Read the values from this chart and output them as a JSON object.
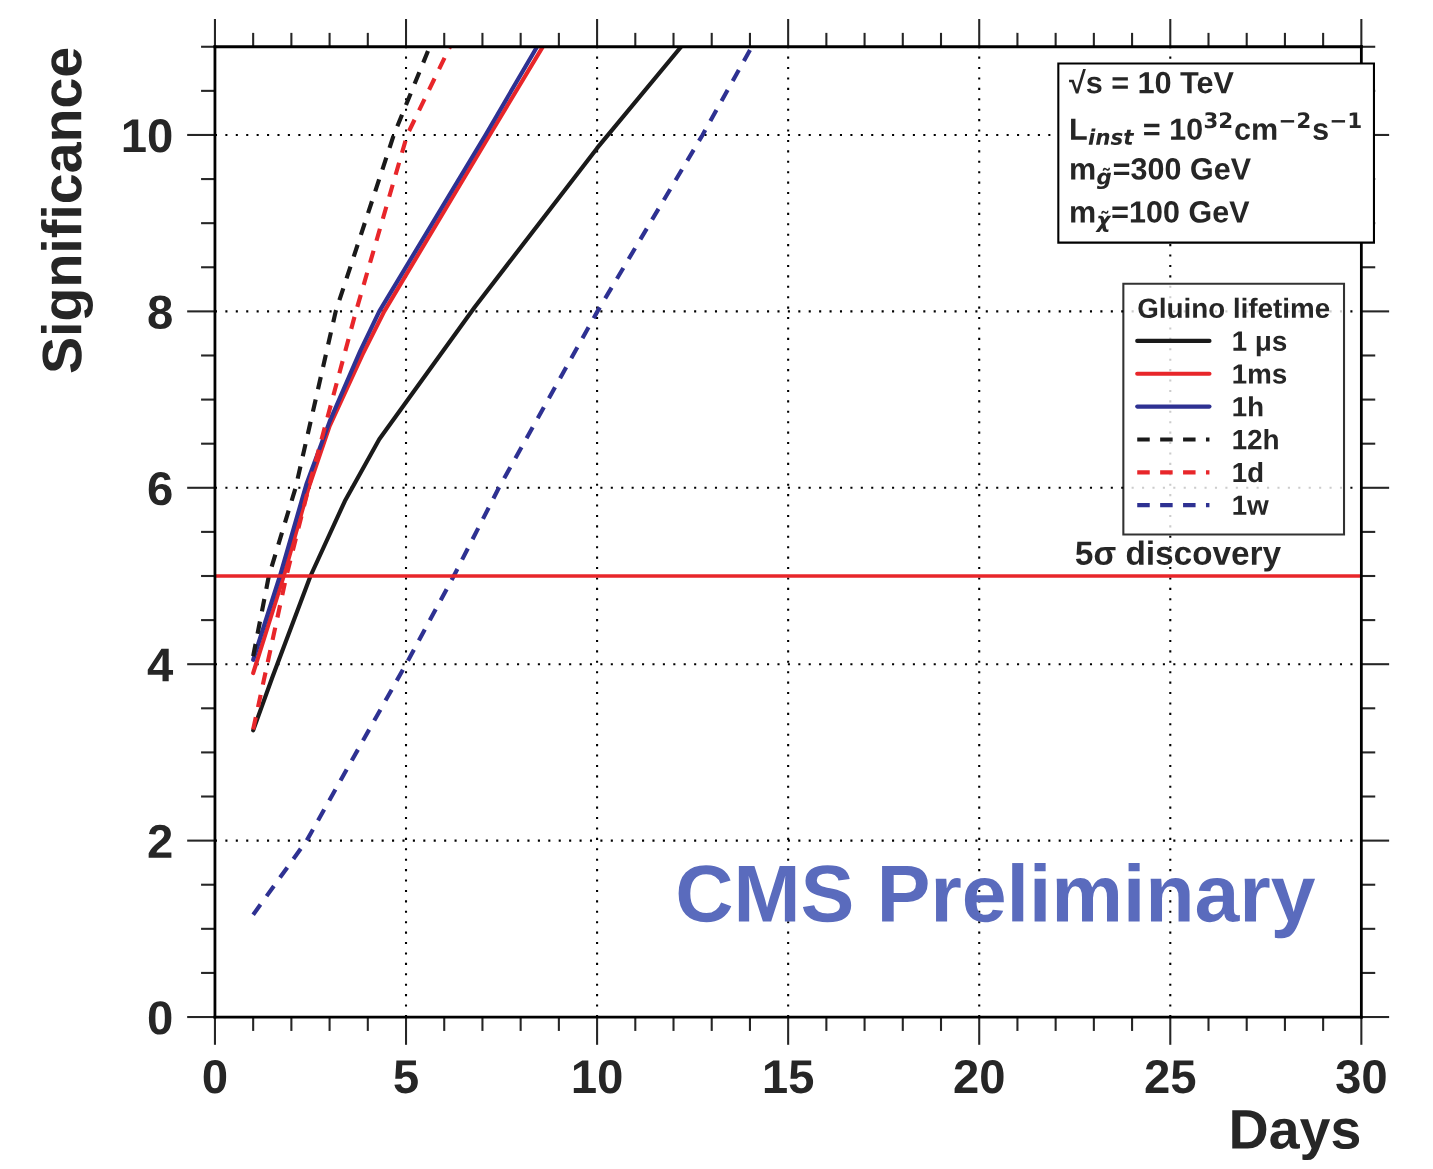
{
  "chart_data": {
    "type": "line",
    "xlabel": "Days",
    "ylabel": "Significance",
    "legend_title": "Gluino lifetime",
    "xlim": [
      0,
      30
    ],
    "ylim": [
      0,
      11
    ],
    "xticks": [
      0,
      {
        "value": 1,
        "label": null
      },
      {
        "value": 2,
        "label": null
      },
      {
        "value": 3,
        "label": null
      },
      {
        "value": 4,
        "label": null
      },
      5,
      {
        "value": 6,
        "label": null
      },
      {
        "value": 7,
        "label": null
      },
      {
        "value": 8,
        "label": null
      },
      {
        "value": 9,
        "label": null
      },
      10,
      {
        "value": 11,
        "label": null
      },
      {
        "value": 12,
        "label": null
      },
      {
        "value": 13,
        "label": null
      },
      {
        "value": 14,
        "label": null
      },
      15,
      {
        "value": 16,
        "label": null
      },
      {
        "value": 17,
        "label": null
      },
      {
        "value": 18,
        "label": null
      },
      {
        "value": 19,
        "label": null
      },
      20,
      {
        "value": 21,
        "label": null
      },
      {
        "value": 22,
        "label": null
      },
      {
        "value": 23,
        "label": null
      },
      {
        "value": 24,
        "label": null
      },
      25,
      {
        "value": 26,
        "label": null
      },
      {
        "value": 27,
        "label": null
      },
      {
        "value": 28,
        "label": null
      },
      {
        "value": 29,
        "label": null
      },
      30
    ],
    "yticks": [
      0,
      {
        "value": 0.5,
        "label": null
      },
      {
        "value": 1,
        "label": null
      },
      {
        "value": 1.5,
        "label": null
      },
      2,
      {
        "value": 2.5,
        "label": null
      },
      {
        "value": 3,
        "label": null
      },
      {
        "value": 3.5,
        "label": null
      },
      4,
      {
        "value": 4.5,
        "label": null
      },
      {
        "value": 5,
        "label": null
      },
      {
        "value": 5.5,
        "label": null
      },
      6,
      {
        "value": 6.5,
        "label": null
      },
      {
        "value": 7,
        "label": null
      },
      {
        "value": 7.5,
        "label": null
      },
      8,
      {
        "value": 8.5,
        "label": null
      },
      {
        "value": 9,
        "label": null
      },
      {
        "value": 9.5,
        "label": null
      },
      10,
      {
        "value": 10.5,
        "label": null
      },
      {
        "value": 11,
        "label": null
      }
    ],
    "grid": true,
    "legend": "top right",
    "series": [
      {
        "name": "1 μs",
        "color": "#1a1a1a",
        "line_style": "solid",
        "x": [
          1,
          1.5,
          2.5,
          3.4,
          4.3,
          6.8,
          10,
          12.2
        ],
        "values": [
          3.25,
          3.85,
          5.0,
          5.85,
          6.55,
          8.05,
          9.85,
          11.0
        ]
      },
      {
        "name": "1ms",
        "color": "#e8262a",
        "line_style": "solid",
        "x": [
          1,
          1.8,
          2.45,
          3.0,
          3.86,
          4.43,
          7.19,
          8.58
        ],
        "values": [
          3.9,
          5,
          6,
          6.7,
          7.51,
          8,
          10,
          11
        ]
      },
      {
        "name": "1h",
        "color": "#2e3192",
        "line_style": "solid",
        "x": [
          1,
          1.7,
          2.4,
          3.0,
          3.8,
          4.3,
          7.08,
          8.43
        ],
        "values": [
          4.05,
          5,
          6.05,
          6.75,
          7.55,
          8,
          10,
          11
        ]
      },
      {
        "name": "12h",
        "color": "#1a1a1a",
        "line_style": "dashed",
        "x": [
          1,
          1.41,
          2.11,
          3.16,
          4.68,
          5.62
        ],
        "values": [
          4.09,
          5,
          6,
          8,
          10,
          11
        ]
      },
      {
        "name": "1d",
        "color": "#e8262a",
        "line_style": "dashed",
        "x": [
          1,
          1.87,
          2.45,
          3.69,
          5.03,
          6.15
        ],
        "values": [
          3.26,
          5,
          6,
          8,
          10,
          11
        ]
      },
      {
        "name": "1w",
        "color": "#2e3192",
        "line_style": "dashed",
        "x": [
          1,
          2.4,
          5,
          6.25,
          7.43,
          10.01,
          12.76,
          14.05
        ],
        "values": [
          1.16,
          2,
          4,
          5,
          6,
          8,
          10,
          11
        ]
      }
    ],
    "ref_lines": [
      {
        "axis": "y",
        "value": 5,
        "label": "5σ discovery",
        "color": "#e8262a",
        "line_style": "solid"
      }
    ],
    "annotations": [
      "√s = 10 TeV",
      "L$_{inst}$ = 10$^{32}$cm$^{−2}$s$^{−1}$",
      "m$_{g̃}$=300 GeV",
      "m$_{χ̃}$=100 GeV",
      "CMS Preliminary"
    ]
  }
}
